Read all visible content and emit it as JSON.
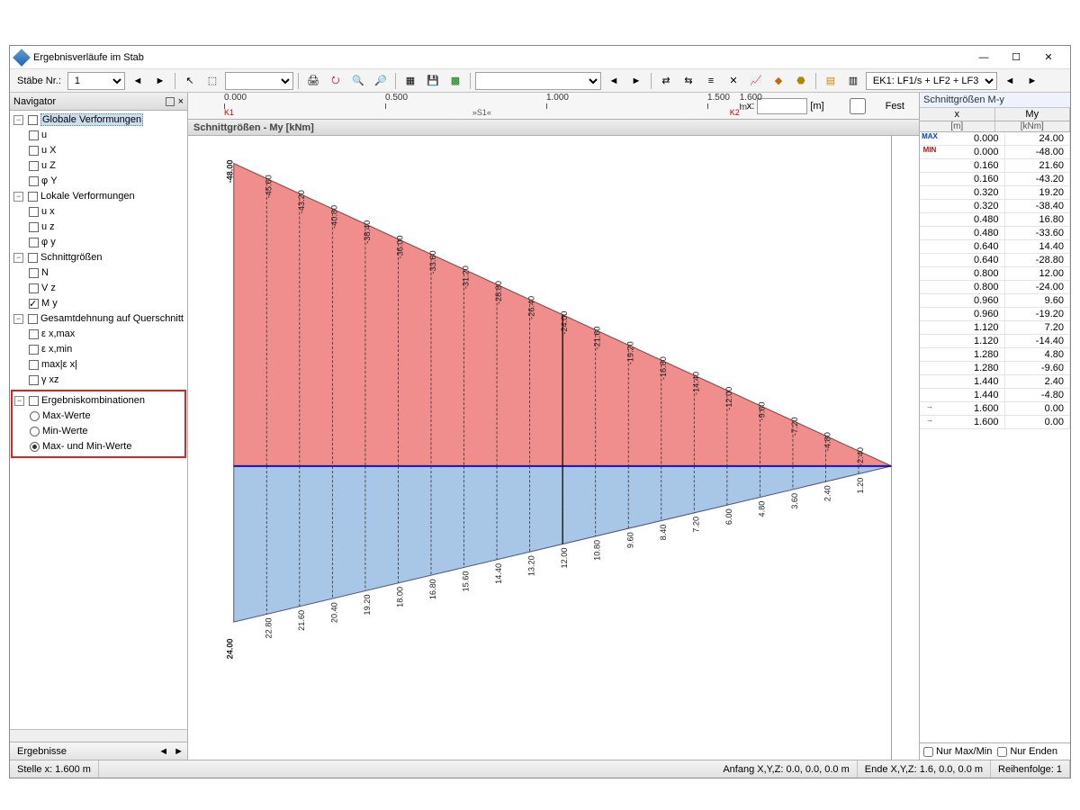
{
  "window": {
    "title": "Ergebnisverläufe im Stab"
  },
  "toolbar": {
    "staebe_label": "Stäbe Nr.:",
    "staebe_val": "1",
    "ek_combo": "EK1: LF1/s + LF2 + LF3"
  },
  "navigator": {
    "title": "Navigator",
    "groups": [
      {
        "label": "Globale Verformungen",
        "sel": true,
        "items": [
          "u",
          "u X",
          "u Z",
          "φ Y"
        ]
      },
      {
        "label": "Lokale Verformungen",
        "items": [
          "u x",
          "u z",
          "φ y"
        ]
      },
      {
        "label": "Schnittgrößen",
        "items": [
          {
            "t": "N",
            "on": false
          },
          {
            "t": "V z",
            "on": false
          },
          {
            "t": "M y",
            "on": true
          }
        ]
      },
      {
        "label": "Gesamtdehnung auf Querschnitt",
        "items": [
          "ε x,max",
          "ε x,min",
          "max|ε x|",
          "γ xz"
        ]
      }
    ],
    "ek": {
      "label": "Ergebniskombinationen",
      "opts": [
        "Max-Werte",
        "Min-Werte",
        "Max- und Min-Werte"
      ],
      "sel": 2
    },
    "tab": "Ergebnisse"
  },
  "ruler": {
    "ticks": [
      {
        "x": 0,
        "l": "0.000"
      },
      {
        "x": 0.5,
        "l": "0.500"
      },
      {
        "x": 1.0,
        "l": "1.000"
      },
      {
        "x": 1.5,
        "l": "1.500"
      },
      {
        "x": 1.6,
        "l": "1.600 m"
      }
    ],
    "k1": "K1",
    "k2": "K2",
    "s1": "»S1«",
    "xlabel": "x:",
    "unit": "[m]",
    "fest": "Fest"
  },
  "chart": {
    "title": "Schnittgrößen - My [kNm]",
    "xmax": 1.6,
    "top_start": -48.0,
    "bottom_start": 24.0,
    "color_top": "#f08d8d",
    "color_bottom": "#a8c6e6",
    "stroke_top": "#c33",
    "stroke_bottom": "#235aa6",
    "axis_color": "#0018c8",
    "n": 20,
    "top_end_label": "-48.00",
    "bot_end_label": "24.00",
    "top_labels": [
      "-45.60",
      "-43.20",
      "-40.80",
      "-38.40",
      "-36.00",
      "-33.60",
      "-31.20",
      "-28.80",
      "-26.40",
      "-24.00",
      "-21.60",
      "-19.20",
      "-16.80",
      "-14.40",
      "-12.00",
      "-9.60",
      "-7.20",
      "-4.80",
      "-2.40"
    ],
    "bot_labels": [
      "22.80",
      "21.60",
      "20.40",
      "19.20",
      "18.00",
      "16.80",
      "15.60",
      "14.40",
      "13.20",
      "12.00",
      "10.80",
      "9.60",
      "8.40",
      "7.20",
      "6.00",
      "4.80",
      "3.60",
      "2.40",
      "1.20"
    ]
  },
  "table": {
    "title": "Schnittgrößen M-y",
    "col1": "x",
    "col1u": "[m]",
    "col2": "My",
    "col2u": "[kNm]",
    "rows": [
      {
        "m": "MAX",
        "mc": "#0040c0",
        "x": "0.000",
        "y": "24.00"
      },
      {
        "m": "MIN",
        "mc": "#c01010",
        "x": "0.000",
        "y": "-48.00"
      },
      {
        "x": "0.160",
        "y": "21.60"
      },
      {
        "x": "0.160",
        "y": "-43.20"
      },
      {
        "x": "0.320",
        "y": "19.20"
      },
      {
        "x": "0.320",
        "y": "-38.40"
      },
      {
        "x": "0.480",
        "y": "16.80"
      },
      {
        "x": "0.480",
        "y": "-33.60"
      },
      {
        "x": "0.640",
        "y": "14.40"
      },
      {
        "x": "0.640",
        "y": "-28.80"
      },
      {
        "x": "0.800",
        "y": "12.00"
      },
      {
        "x": "0.800",
        "y": "-24.00"
      },
      {
        "x": "0.960",
        "y": "9.60"
      },
      {
        "x": "0.960",
        "y": "-19.20"
      },
      {
        "x": "1.120",
        "y": "7.20"
      },
      {
        "x": "1.120",
        "y": "-14.40"
      },
      {
        "x": "1.280",
        "y": "4.80"
      },
      {
        "x": "1.280",
        "y": "-9.60"
      },
      {
        "x": "1.440",
        "y": "2.40"
      },
      {
        "x": "1.440",
        "y": "-4.80"
      },
      {
        "m": "→",
        "mc": "#0040c0",
        "x": "1.600",
        "y": "0.00"
      },
      {
        "m": "→",
        "mc": "#0040c0",
        "x": "1.600",
        "y": "0.00"
      }
    ],
    "nurmax": "Nur Max/Min",
    "nurend": "Nur Enden"
  },
  "status": {
    "stelle": "Stelle x: 1.600 m",
    "anfang": "Anfang X,Y,Z:   0.0, 0.0, 0.0 m",
    "ende": "Ende X,Y,Z:   1.6, 0.0, 0.0 m",
    "reihen": "Reihenfolge:   1"
  }
}
